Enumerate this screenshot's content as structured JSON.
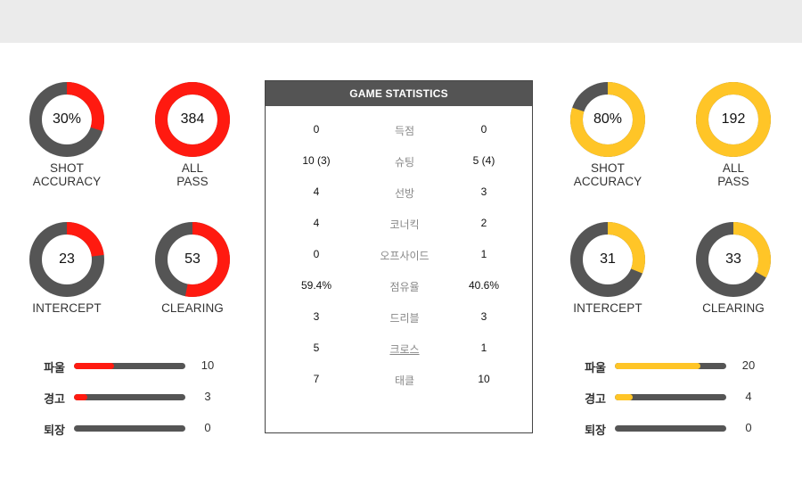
{
  "colors": {
    "home_accent": "#ff1a10",
    "away_accent": "#ffc527",
    "track": "#555555",
    "header_bg": "#545454"
  },
  "home": {
    "donuts": [
      {
        "value": "30%",
        "label": "SHOT\nACCURACY",
        "fraction": 0.3
      },
      {
        "value": "384",
        "label": "ALL\nPASS",
        "fraction": 1.0
      },
      {
        "value": "23",
        "label": "INTERCEPT",
        "fraction": 0.23
      },
      {
        "value": "53",
        "label": "CLEARING",
        "fraction": 0.53
      }
    ],
    "bars": [
      {
        "label": "파울",
        "value": "10",
        "fraction": 0.36
      },
      {
        "label": "경고",
        "value": "3",
        "fraction": 0.12
      },
      {
        "label": "퇴장",
        "value": "0",
        "fraction": 0.0
      }
    ]
  },
  "away": {
    "donuts": [
      {
        "value": "80%",
        "label": "SHOT\nACCURACY",
        "fraction": 0.8
      },
      {
        "value": "192",
        "label": "ALL\nPASS",
        "fraction": 1.0
      },
      {
        "value": "31",
        "label": "INTERCEPT",
        "fraction": 0.31
      },
      {
        "value": "33",
        "label": "CLEARING",
        "fraction": 0.33
      }
    ],
    "bars": [
      {
        "label": "파울",
        "value": "20",
        "fraction": 0.77
      },
      {
        "label": "경고",
        "value": "4",
        "fraction": 0.16
      },
      {
        "label": "퇴장",
        "value": "0",
        "fraction": 0.0
      }
    ]
  },
  "stats": {
    "title": "GAME STATISTICS",
    "rows": [
      {
        "home": "0",
        "label": "득점",
        "away": "0"
      },
      {
        "home": "10 (3)",
        "label": "슈팅",
        "away": "5 (4)"
      },
      {
        "home": "4",
        "label": "선방",
        "away": "3"
      },
      {
        "home": "4",
        "label": "코너킥",
        "away": "2"
      },
      {
        "home": "0",
        "label": "오프사이드",
        "away": "1"
      },
      {
        "home": "59.4%",
        "label": "점유율",
        "away": "40.6%"
      },
      {
        "home": "3",
        "label": "드리블",
        "away": "3"
      },
      {
        "home": "5",
        "label": "크로스",
        "away": "1"
      },
      {
        "home": "7",
        "label": "태클",
        "away": "10"
      }
    ]
  }
}
